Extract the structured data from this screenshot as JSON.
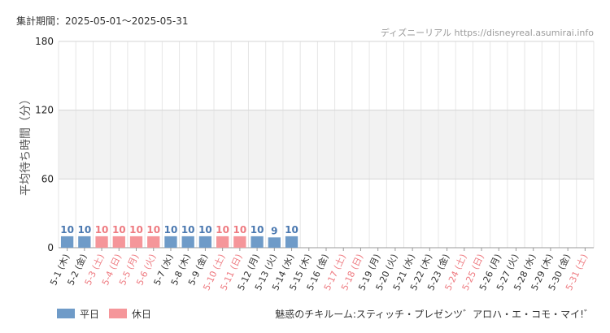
{
  "header": {
    "period_label": "集計期間：2025-05-01～2025-05-31",
    "source_label": "ディズニーリアル https://disneyreal.asumirai.info"
  },
  "legend": {
    "weekday_label": "平日",
    "holiday_label": "休日"
  },
  "footer": {
    "attraction_name": "魅惑のチキルーム:スティッチ・プレゼンツ゛アロハ・エ・コモ・マイ!゛"
  },
  "colors": {
    "weekday": "#6f9bc8",
    "holiday": "#f5969a",
    "weekday_text": "#4a78b0",
    "holiday_text": "#ee7a80",
    "band": "#f2f2f2"
  },
  "chart_data": {
    "type": "bar",
    "ylabel": "平均待ち時間（分）",
    "ylim": [
      0,
      180
    ],
    "yticks": [
      0,
      60,
      120,
      180
    ],
    "grid": true,
    "legend_position": "bottom-left",
    "categories": [
      "5-1 (木)",
      "5-2 (金)",
      "5-3 (土)",
      "5-4 (日)",
      "5-5 (月)",
      "5-6 (火)",
      "5-7 (水)",
      "5-8 (木)",
      "5-9 (金)",
      "5-10 (土)",
      "5-11 (日)",
      "5-12 (月)",
      "5-13 (火)",
      "5-14 (水)",
      "5-15 (木)",
      "5-16 (金)",
      "5-17 (土)",
      "5-18 (日)",
      "5-19 (月)",
      "5-20 (火)",
      "5-21 (水)",
      "5-22 (木)",
      "5-23 (金)",
      "5-24 (土)",
      "5-25 (日)",
      "5-26 (月)",
      "5-27 (火)",
      "5-28 (水)",
      "5-29 (木)",
      "5-30 (金)",
      "5-31 (土)"
    ],
    "day_type": [
      "weekday",
      "weekday",
      "holiday",
      "holiday",
      "holiday",
      "holiday",
      "weekday",
      "weekday",
      "weekday",
      "holiday",
      "holiday",
      "weekday",
      "weekday",
      "weekday",
      "weekday",
      "weekday",
      "holiday",
      "holiday",
      "weekday",
      "weekday",
      "weekday",
      "weekday",
      "weekday",
      "holiday",
      "holiday",
      "weekday",
      "weekday",
      "weekday",
      "weekday",
      "weekday",
      "holiday"
    ],
    "values": [
      10,
      10,
      10,
      10,
      10,
      10,
      10,
      10,
      10,
      10,
      10,
      10,
      9,
      10,
      null,
      null,
      null,
      null,
      null,
      null,
      null,
      null,
      null,
      null,
      null,
      null,
      null,
      null,
      null,
      null,
      null
    ]
  }
}
